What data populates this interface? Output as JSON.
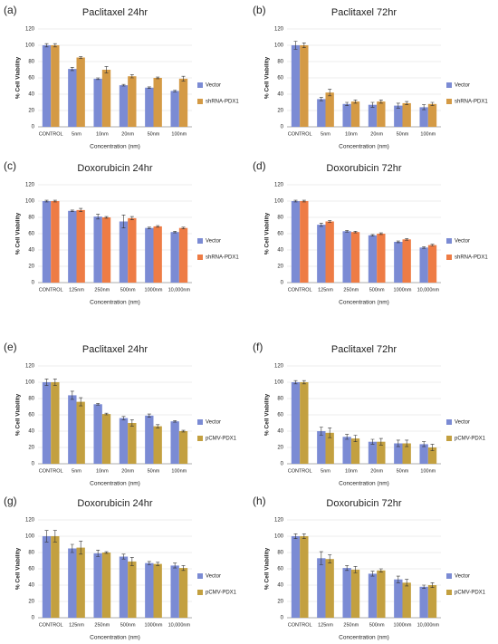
{
  "chart_data": [
    {
      "type": "bar",
      "panel": "(a)",
      "title": "Paclitaxel 24hr",
      "x_label": "Concentration (nm)",
      "y_label": "% Cell Viability",
      "categories": [
        "CONTROL",
        "5nm",
        "10nm",
        "20nm",
        "50nm",
        "100nm"
      ],
      "series": [
        {
          "name": "Vector",
          "color": "#7b8bd4",
          "values": [
            100,
            71,
            59,
            51,
            48,
            44
          ],
          "errors": [
            2,
            2,
            1,
            1,
            1,
            1
          ]
        },
        {
          "name": "shRNA-PDX1",
          "color": "#d49a45",
          "values": [
            100,
            85,
            70,
            62,
            60,
            59
          ],
          "errors": [
            2,
            1,
            4,
            2,
            1,
            3
          ]
        }
      ],
      "ylim": [
        0,
        120
      ],
      "yticks": [
        0,
        20,
        40,
        60,
        80,
        100,
        120
      ],
      "grid": true
    },
    {
      "type": "bar",
      "panel": "(b)",
      "title": "Paclitaxel 72hr",
      "x_label": "Concentration (nm)",
      "y_label": "% Cell Viability",
      "categories": [
        "CONTROL",
        "5nm",
        "10nm",
        "20nm",
        "50nm",
        "100nm"
      ],
      "series": [
        {
          "name": "Vector",
          "color": "#7b8bd4",
          "values": [
            100,
            34,
            28,
            27,
            26,
            24
          ],
          "errors": [
            5,
            2,
            2,
            3,
            3,
            3
          ]
        },
        {
          "name": "shRNA-PDX1",
          "color": "#d49a45",
          "values": [
            100,
            42,
            31,
            31,
            29,
            28
          ],
          "errors": [
            3,
            4,
            2,
            2,
            2,
            2
          ]
        }
      ],
      "ylim": [
        0,
        120
      ],
      "yticks": [
        0,
        20,
        40,
        60,
        80,
        100,
        120
      ],
      "grid": true
    },
    {
      "type": "bar",
      "panel": "(c)",
      "title": "Doxorubicin 24hr",
      "x_label": "Concentration (nm)",
      "y_label": "% Cell Viability",
      "categories": [
        "CONTROL",
        "125nm",
        "250nm",
        "500nm",
        "1000nm",
        "10,000nm"
      ],
      "series": [
        {
          "name": "Vector",
          "color": "#7b8bd4",
          "values": [
            100,
            88,
            81,
            75,
            67,
            62
          ],
          "errors": [
            1,
            1,
            3,
            8,
            1,
            1
          ]
        },
        {
          "name": "shRNA-PDX1",
          "color": "#ee7c45",
          "values": [
            100,
            89,
            80,
            79,
            69,
            67
          ],
          "errors": [
            1,
            2,
            1,
            2,
            1,
            1
          ]
        }
      ],
      "ylim": [
        0,
        120
      ],
      "yticks": [
        0,
        20,
        40,
        60,
        80,
        100,
        120
      ],
      "grid": true
    },
    {
      "type": "bar",
      "panel": "(d)",
      "title": "Doxorubicin 72hr",
      "x_label": "Concentration (nm)",
      "y_label": "% Cell Viability",
      "categories": [
        "CONTROL",
        "125nm",
        "250nm",
        "500nm",
        "1000nm",
        "10,000nm"
      ],
      "series": [
        {
          "name": "Vector",
          "color": "#7b8bd4",
          "values": [
            100,
            71,
            63,
            58,
            50,
            43
          ],
          "errors": [
            1,
            2,
            1,
            1,
            1,
            1
          ]
        },
        {
          "name": "shRNA-PDX1",
          "color": "#ee7c45",
          "values": [
            100,
            75,
            62,
            60,
            53,
            46
          ],
          "errors": [
            1,
            1,
            1,
            1,
            1,
            1
          ]
        }
      ],
      "ylim": [
        0,
        120
      ],
      "yticks": [
        0,
        20,
        40,
        60,
        80,
        100,
        120
      ],
      "grid": true
    },
    {
      "type": "bar",
      "panel": "(e)",
      "title": "Paclitaxel 24hr",
      "x_label": "Concentration (nm)",
      "y_label": "% Cell Viability",
      "categories": [
        "CONTROL",
        "5nm",
        "10nm",
        "20nm",
        "50nm",
        "100nm"
      ],
      "series": [
        {
          "name": "Vector",
          "color": "#7b8bd4",
          "values": [
            100,
            84,
            73,
            56,
            59,
            52
          ],
          "errors": [
            4,
            5,
            1,
            2,
            2,
            1
          ]
        },
        {
          "name": "pCMV-PDX1",
          "color": "#c3a040",
          "values": [
            100,
            76,
            61,
            50,
            46,
            40
          ],
          "errors": [
            4,
            5,
            1,
            4,
            2,
            1
          ]
        }
      ],
      "ylim": [
        0,
        120
      ],
      "yticks": [
        0,
        20,
        40,
        60,
        80,
        100,
        120
      ],
      "grid": true
    },
    {
      "type": "bar",
      "panel": "(f)",
      "title": "Paclitaxel 72hr",
      "x_label": "Concentration (nm)",
      "y_label": "% Cell Viability",
      "categories": [
        "CONTROL",
        "5nm",
        "10nm",
        "20nm",
        "50nm",
        "100nm"
      ],
      "series": [
        {
          "name": "Vector",
          "color": "#7b8bd4",
          "values": [
            100,
            40,
            33,
            27,
            25,
            24
          ],
          "errors": [
            2,
            5,
            3,
            3,
            4,
            3
          ]
        },
        {
          "name": "pCMV-PDX1",
          "color": "#c3a040",
          "values": [
            100,
            38,
            31,
            27,
            25,
            20
          ],
          "errors": [
            2,
            6,
            4,
            4,
            4,
            4
          ]
        }
      ],
      "ylim": [
        0,
        120
      ],
      "yticks": [
        0,
        20,
        40,
        60,
        80,
        100,
        120
      ],
      "grid": true
    },
    {
      "type": "bar",
      "panel": "(g)",
      "title": "Doxorubicin 24hr",
      "x_label": "Concentration (nm)",
      "y_label": "% Cell Viability",
      "categories": [
        "CONTROL",
        "125nm",
        "250nm",
        "500nm",
        "1000nm",
        "10,000nm"
      ],
      "series": [
        {
          "name": "Vector",
          "color": "#7b8bd4",
          "values": [
            100,
            85,
            79,
            75,
            67,
            64
          ],
          "errors": [
            7,
            5,
            4,
            3,
            2,
            3
          ]
        },
        {
          "name": "pCMV-PDX1",
          "color": "#c3a040",
          "values": [
            100,
            86,
            80,
            69,
            66,
            61
          ],
          "errors": [
            7,
            8,
            1,
            5,
            2,
            3
          ]
        }
      ],
      "ylim": [
        0,
        120
      ],
      "yticks": [
        0,
        20,
        40,
        60,
        80,
        100,
        120
      ],
      "grid": true
    },
    {
      "type": "bar",
      "panel": "(h)",
      "title": "Doxorubicin 72hr",
      "x_label": "Concentration (nm)",
      "y_label": "% Cell Viability",
      "categories": [
        "CONTROL",
        "125nm",
        "250nm",
        "500nm",
        "1000nm",
        "10,000nm"
      ],
      "series": [
        {
          "name": "Vector",
          "color": "#7b8bd4",
          "values": [
            100,
            73,
            61,
            54,
            47,
            38
          ],
          "errors": [
            3,
            8,
            3,
            3,
            4,
            2
          ]
        },
        {
          "name": "pCMV-PDX1",
          "color": "#c3a040",
          "values": [
            100,
            72,
            59,
            58,
            43,
            40
          ],
          "errors": [
            3,
            5,
            4,
            2,
            4,
            3
          ]
        }
      ],
      "ylim": [
        0,
        120
      ],
      "yticks": [
        0,
        20,
        40,
        60,
        80,
        100,
        120
      ],
      "grid": true
    }
  ]
}
